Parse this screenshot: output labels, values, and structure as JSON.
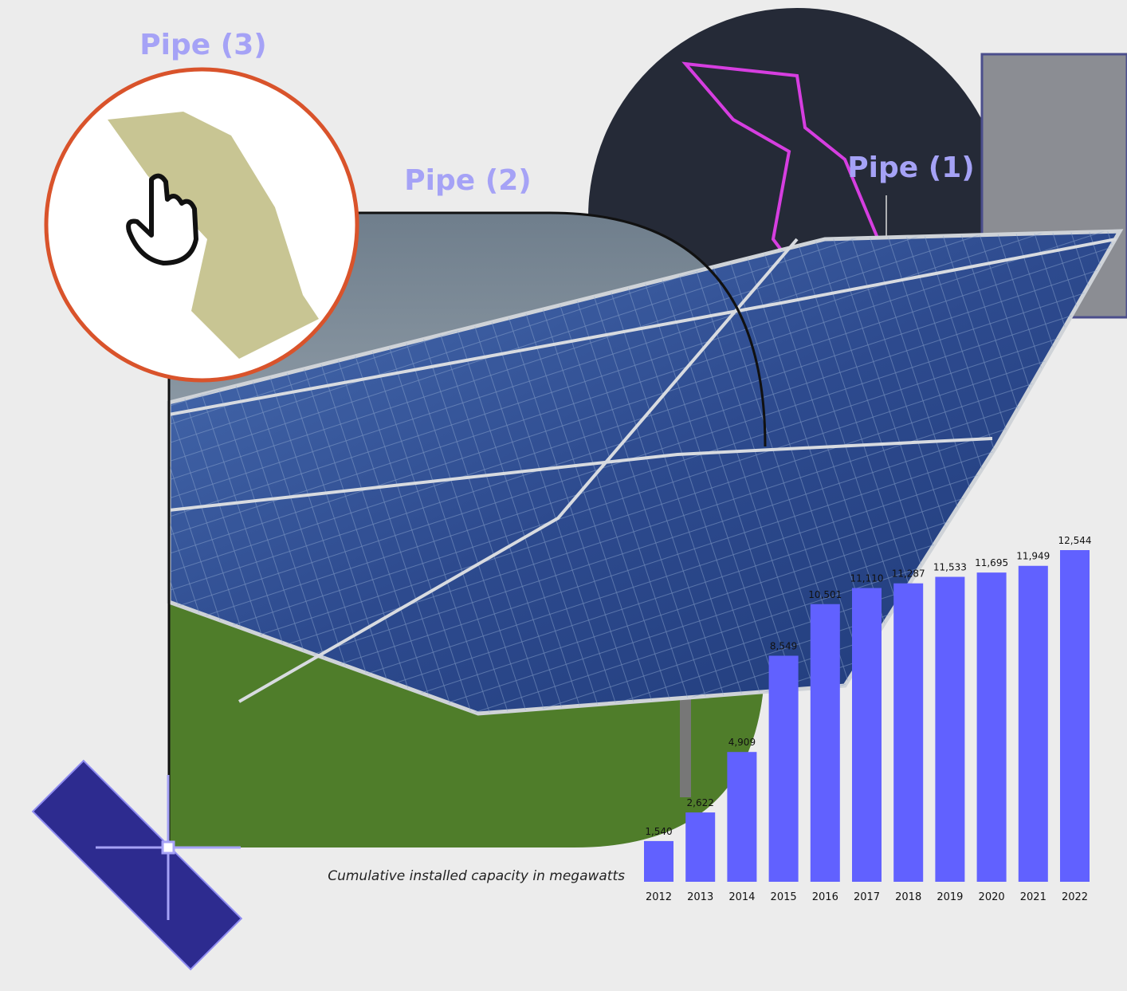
{
  "labels": [
    "Pipe (3)",
    "Pipe (2)",
    "Pipe (1)"
  ],
  "chart_data": {
    "type": "bar",
    "caption": "Cumulative installed capacity in megawatts",
    "categories": [
      "2012",
      "2013",
      "2014",
      "2015",
      "2016",
      "2017",
      "2018",
      "2019",
      "2020",
      "2021",
      "2022"
    ],
    "values": [
      1540,
      2622,
      4909,
      8549,
      10501,
      11110,
      11287,
      11533,
      11695,
      11949,
      12544
    ],
    "value_labels": [
      "1,540",
      "2,622",
      "4,909",
      "8,549",
      "10,501",
      "11,110",
      "11,287",
      "11,533",
      "11,695",
      "11,949",
      "12,544"
    ],
    "color": "#6161ff"
  }
}
